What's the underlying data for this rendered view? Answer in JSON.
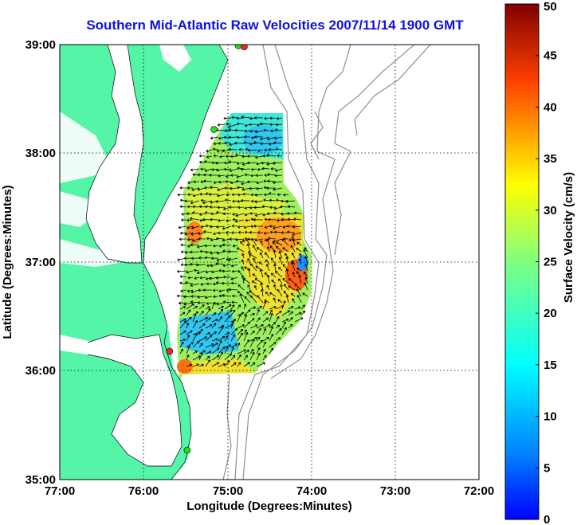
{
  "title": "Southern Mid-Atlantic Raw Velocities 2007/11/14 1900 GMT",
  "map": {
    "xlabel": "Longitude (Degrees:Minutes)",
    "ylabel": "Latitude (Degrees:Minutes)",
    "lon_range": [
      -77,
      -72
    ],
    "lat_range": [
      35,
      39
    ],
    "x_ticks": [
      "77:00",
      "76:00",
      "75:00",
      "74:00",
      "73:00",
      "72:00"
    ],
    "y_ticks": [
      "35:00",
      "36:00",
      "37:00",
      "38:00",
      "39:00"
    ],
    "grid": "dotted",
    "land_color": "#55f5a8",
    "sea_color": "#ffffff",
    "bathymetry_color": "#909090",
    "stations": [
      {
        "color": "red",
        "lon": -74.8,
        "lat": 38.98
      },
      {
        "color": "green",
        "lon": -74.87,
        "lat": 38.99
      },
      {
        "color": "green",
        "lon": -75.16,
        "lat": 38.22
      },
      {
        "color": "red",
        "lon": -75.69,
        "lat": 36.18
      },
      {
        "color": "green",
        "lon": -75.48,
        "lat": 35.27
      }
    ]
  },
  "colorbar": {
    "label": "Surface Velocity (cm/s)",
    "min": 0,
    "max": 50,
    "ticks": [
      "0",
      "5",
      "10",
      "15",
      "20",
      "25",
      "30",
      "35",
      "40",
      "45",
      "50"
    ],
    "colormap": "jet"
  }
}
